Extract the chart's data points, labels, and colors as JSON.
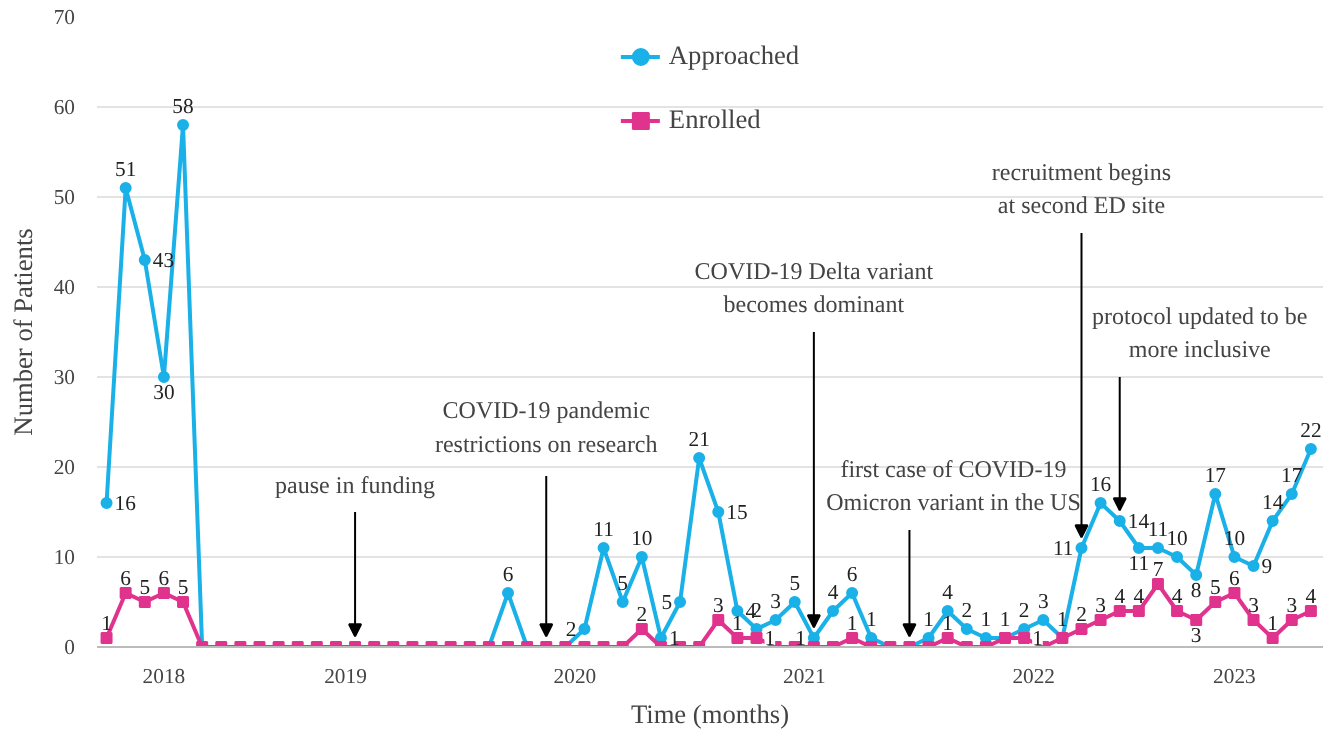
{
  "chart_data": {
    "type": "line",
    "xlabel": "Time (months)",
    "ylabel": "Number of Patients",
    "x": [
      "2018-06",
      "2018-07",
      "2018-08",
      "2018-09",
      "2018-10",
      "2018-11",
      "2018-12",
      "2019-01",
      "2019-02",
      "2019-03",
      "2019-04",
      "2019-05",
      "2019-06",
      "2019-07",
      "2019-08",
      "2019-09",
      "2019-10",
      "2019-11",
      "2019-12",
      "2020-01",
      "2020-02",
      "2020-03",
      "2020-04",
      "2020-05",
      "2020-06",
      "2020-07",
      "2020-08",
      "2020-09",
      "2020-10",
      "2020-11",
      "2020-12",
      "2021-01",
      "2021-02",
      "2021-03",
      "2021-04",
      "2021-05",
      "2021-06",
      "2021-07",
      "2021-08",
      "2021-09",
      "2021-10",
      "2021-11",
      "2021-12",
      "2022-01",
      "2022-02",
      "2022-03",
      "2022-04",
      "2022-05",
      "2022-06",
      "2022-07",
      "2022-08",
      "2022-09",
      "2022-10",
      "2022-11",
      "2022-12",
      "2023-01",
      "2023-02",
      "2023-03",
      "2023-04",
      "2023-05",
      "2023-06",
      "2023-07",
      "2023-08",
      "2023-09"
    ],
    "series": [
      {
        "name": "Approached",
        "color": "#1ab0e8",
        "marker": "circle",
        "values": [
          16,
          51,
          43,
          30,
          58,
          0,
          0,
          0,
          0,
          0,
          0,
          0,
          0,
          0,
          0,
          0,
          0,
          0,
          0,
          0,
          0,
          6,
          0,
          0,
          0,
          2,
          11,
          5,
          10,
          1,
          5,
          21,
          15,
          4,
          2,
          3,
          5,
          1,
          4,
          6,
          1,
          0,
          0,
          1,
          4,
          2,
          1,
          1,
          2,
          3,
          1,
          11,
          16,
          14,
          11,
          11,
          10,
          8,
          17,
          10,
          9,
          14,
          17,
          22
        ],
        "value_labels": [
          "16",
          "51",
          "43",
          "30",
          "58",
          null,
          null,
          null,
          null,
          null,
          null,
          null,
          null,
          null,
          null,
          null,
          null,
          null,
          null,
          null,
          null,
          "6",
          null,
          null,
          null,
          "2",
          "11",
          "5",
          "10",
          "1",
          "5",
          "21",
          "15",
          "4",
          "2",
          "3",
          "5",
          "1",
          "4",
          "6",
          "1",
          null,
          null,
          "1",
          "4",
          "2",
          "1",
          "1",
          "2",
          "3",
          "1",
          "11",
          "16",
          "14",
          "11",
          "11",
          "10",
          "8",
          "17",
          "10",
          "9",
          "14",
          "17",
          "22"
        ]
      },
      {
        "name": "Enrolled",
        "color": "#e0338e",
        "marker": "square",
        "values": [
          1,
          6,
          5,
          6,
          5,
          0,
          0,
          0,
          0,
          0,
          0,
          0,
          0,
          0,
          0,
          0,
          0,
          0,
          0,
          0,
          0,
          0,
          0,
          0,
          0,
          0,
          0,
          0,
          2,
          0,
          0,
          0,
          3,
          1,
          1,
          0,
          0,
          0,
          0,
          1,
          0,
          0,
          0,
          0,
          1,
          0,
          0,
          1,
          1,
          0,
          1,
          2,
          3,
          4,
          4,
          7,
          4,
          3,
          5,
          6,
          3,
          1,
          3,
          4
        ],
        "value_labels": [
          "1",
          "6",
          "5",
          "6",
          "5",
          null,
          null,
          null,
          null,
          null,
          null,
          null,
          null,
          null,
          null,
          null,
          null,
          null,
          null,
          null,
          null,
          null,
          null,
          null,
          null,
          null,
          null,
          null,
          "2",
          null,
          null,
          null,
          "3",
          "1",
          "1",
          null,
          null,
          null,
          null,
          "1",
          null,
          null,
          null,
          null,
          "1",
          null,
          null,
          null,
          "1",
          null,
          null,
          "2",
          "3",
          "4",
          "4",
          "7",
          "4",
          "3",
          "5",
          "6",
          "3",
          "1",
          "3",
          "4"
        ]
      }
    ],
    "ylim": [
      0,
      70
    ],
    "yticks": [
      0,
      10,
      20,
      30,
      40,
      50,
      60,
      70
    ],
    "xlim": [
      "2018-05-16",
      "2023-09-20"
    ],
    "xticks": [
      {
        "value": "2018-09",
        "label": "2018"
      },
      {
        "value": "2019-06-16",
        "label": "2019"
      },
      {
        "value": "2020-06-16",
        "label": "2020"
      },
      {
        "value": "2021-06-16",
        "label": "2021"
      },
      {
        "value": "2022-06-16",
        "label": "2022"
      },
      {
        "value": "2023-05",
        "label": "2023"
      }
    ],
    "grid": "y",
    "legend": "top",
    "line_style": "solid",
    "annotations": [
      {
        "text": "pause in funding",
        "x": "2019-07",
        "y": 0
      },
      {
        "text": "COVID-19 pandemic\nrestrictions on research",
        "x": "2020-05",
        "y": 0
      },
      {
        "text": "COVID-19 Delta variant\nbecomes dominant",
        "x": "2021-07",
        "y": 1
      },
      {
        "text": "first case of COVID-19\nOmicron variant in the US",
        "x": "2021-12",
        "y": 0
      },
      {
        "text": "recruitment begins\nat second ED site",
        "x": "2022-09",
        "y": 11
      },
      {
        "text": "protocol updated to be\nmore inclusive",
        "x": "2022-11",
        "y": 14
      }
    ]
  }
}
